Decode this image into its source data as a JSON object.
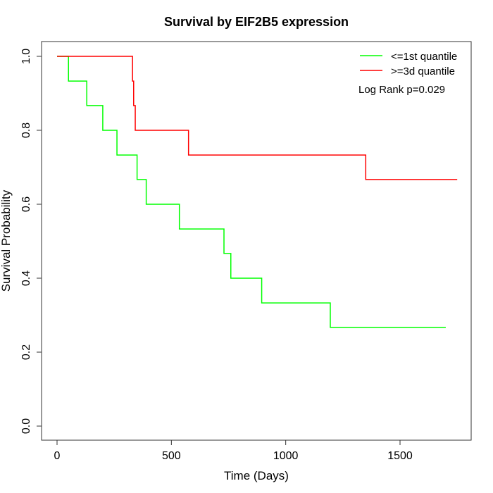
{
  "chart_data": {
    "type": "line",
    "title": "Survival by EIF2B5 expression",
    "xlabel": "Time (Days)",
    "ylabel": "Survival Probability",
    "xlim": [
      0,
      1800
    ],
    "ylim": [
      0,
      1
    ],
    "x_ticks": [
      0,
      500,
      1000,
      1500
    ],
    "y_ticks": [
      0.0,
      0.2,
      0.4,
      0.6,
      0.8,
      1.0
    ],
    "x_tick_labels": [
      "0",
      "500",
      "1000",
      "1500"
    ],
    "y_tick_labels": [
      "0.0",
      "0.2",
      "0.4",
      "0.6",
      "0.8",
      "1.0"
    ],
    "grid": false,
    "legend_position": "top-right",
    "series": [
      {
        "name": "<=1st quantile",
        "color": "#00ff00",
        "step_points": [
          [
            0,
            1.0
          ],
          [
            50,
            1.0
          ],
          [
            50,
            0.933
          ],
          [
            130,
            0.933
          ],
          [
            130,
            0.867
          ],
          [
            200,
            0.867
          ],
          [
            200,
            0.8
          ],
          [
            262,
            0.8
          ],
          [
            262,
            0.733
          ],
          [
            350,
            0.733
          ],
          [
            350,
            0.667
          ],
          [
            390,
            0.667
          ],
          [
            390,
            0.6
          ],
          [
            535,
            0.6
          ],
          [
            535,
            0.533
          ],
          [
            730,
            0.533
          ],
          [
            730,
            0.467
          ],
          [
            760,
            0.467
          ],
          [
            760,
            0.4
          ],
          [
            895,
            0.4
          ],
          [
            895,
            0.333
          ],
          [
            1195,
            0.333
          ],
          [
            1195,
            0.267
          ],
          [
            1700,
            0.267
          ]
        ]
      },
      {
        "name": ">=3d quantile",
        "color": "#ff0000",
        "step_points": [
          [
            0,
            1.0
          ],
          [
            330,
            1.0
          ],
          [
            330,
            0.933
          ],
          [
            335,
            0.933
          ],
          [
            335,
            0.867
          ],
          [
            342,
            0.867
          ],
          [
            342,
            0.8
          ],
          [
            575,
            0.8
          ],
          [
            575,
            0.733
          ],
          [
            1350,
            0.733
          ],
          [
            1350,
            0.667
          ],
          [
            1750,
            0.667
          ]
        ]
      }
    ],
    "annotation": "Log Rank p=0.029"
  }
}
